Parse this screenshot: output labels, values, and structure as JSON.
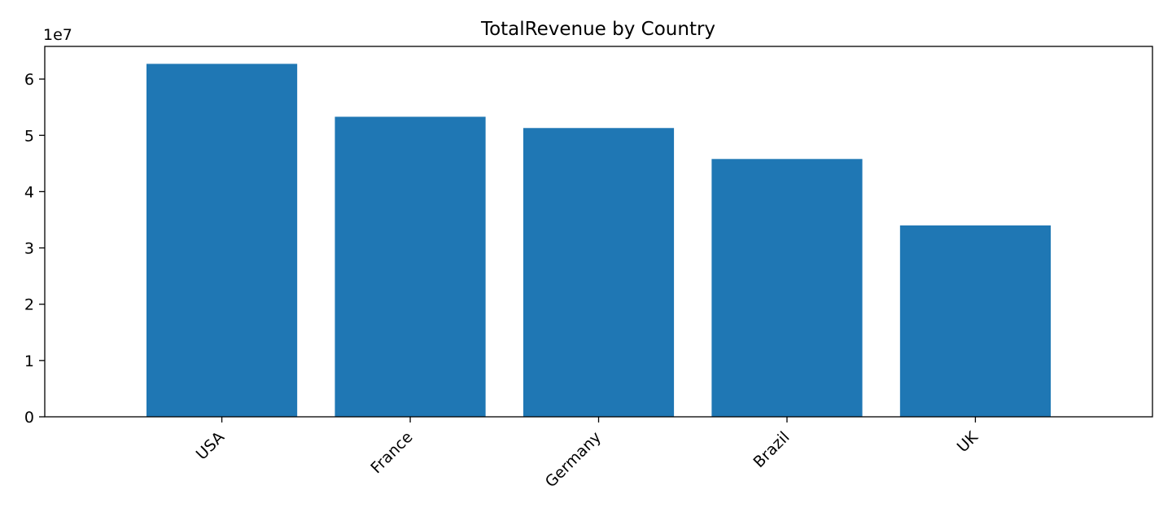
{
  "chart_data": {
    "type": "bar",
    "title": "TotalRevenue by Country",
    "xlabel": "",
    "ylabel": "",
    "categories": [
      "USA",
      "France",
      "Germany",
      "Brazil",
      "UK"
    ],
    "values": [
      62700000,
      53300000,
      51300000,
      45800000,
      34000000
    ],
    "ylim": [
      0,
      65800000
    ],
    "yticks": [
      0,
      1,
      2,
      3,
      4,
      5,
      6
    ],
    "y_scale_label": "1e7",
    "bar_color": "#1f77b4",
    "xtick_rotation": 45,
    "grid": false,
    "legend": "none"
  }
}
